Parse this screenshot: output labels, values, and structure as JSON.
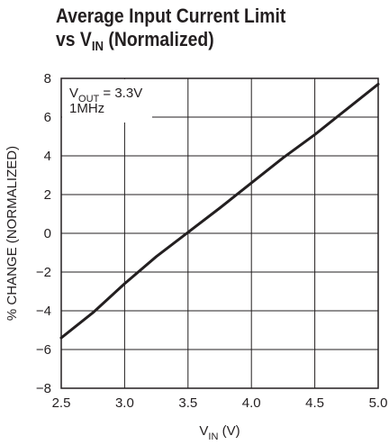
{
  "title": {
    "line1": "Average Input Current Limit",
    "line2_pre": "vs V",
    "line2_sub": "IN",
    "line2_post": " (Normalized)"
  },
  "axes": {
    "ylabel": "% CHANGE (NORMALIZED)",
    "xlabel_pre": "V",
    "xlabel_sub": "IN",
    "xlabel_post": " (V)"
  },
  "annotation": {
    "line1_pre": "V",
    "line1_sub": "OUT",
    "line1_post": " = 3.3V",
    "line2": "1MHz"
  },
  "chart_data": {
    "type": "line",
    "title": "Average Input Current Limit vs VIN (Normalized)",
    "xlabel": "VIN (V)",
    "ylabel": "% CHANGE (NORMALIZED)",
    "xlim": [
      2.5,
      5.0
    ],
    "ylim": [
      -8,
      8
    ],
    "xticks": [
      "2.5",
      "3.0",
      "3.5",
      "4.0",
      "4.5",
      "5.0"
    ],
    "yticks": [
      "8",
      "6",
      "4",
      "2",
      "0",
      "−2",
      "−4",
      "−6",
      "−8"
    ],
    "xtick_values": [
      2.5,
      3.0,
      3.5,
      4.0,
      4.5,
      5.0
    ],
    "ytick_values": [
      8,
      6,
      4,
      2,
      0,
      -2,
      -4,
      -6,
      -8
    ],
    "grid": true,
    "series": [
      {
        "x": [
          2.5,
          2.75,
          3.0,
          3.25,
          3.5,
          3.75,
          4.0,
          4.25,
          4.5,
          4.75,
          5.0
        ],
        "y": [
          -5.4,
          -4.1,
          -2.6,
          -1.2,
          0.05,
          1.3,
          2.6,
          3.9,
          5.1,
          6.4,
          7.7
        ]
      }
    ],
    "line_color": "#231f20"
  }
}
